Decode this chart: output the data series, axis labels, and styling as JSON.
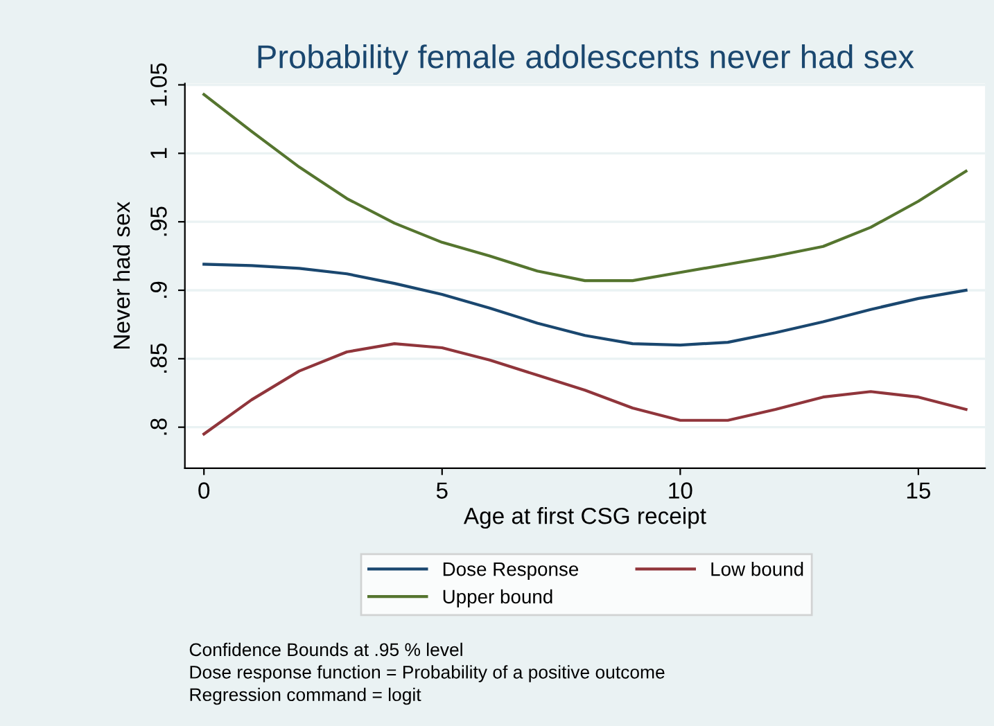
{
  "chart_data": {
    "type": "line",
    "title": "Probability female adolescents never had sex",
    "xlabel": "Age at first CSG receipt",
    "ylabel": "Never had sex",
    "x": [
      0,
      1,
      2,
      3,
      4,
      5,
      6,
      7,
      8,
      9,
      10,
      11,
      12,
      13,
      14,
      15,
      16
    ],
    "series": [
      {
        "name": "Dose Response",
        "color": "#1a476f",
        "values": [
          0.919,
          0.918,
          0.916,
          0.912,
          0.905,
          0.897,
          0.887,
          0.876,
          0.867,
          0.861,
          0.86,
          0.862,
          0.869,
          0.877,
          0.886,
          0.894,
          0.9
        ]
      },
      {
        "name": "Low bound",
        "color": "#90353b",
        "values": [
          0.795,
          0.82,
          0.841,
          0.855,
          0.861,
          0.858,
          0.849,
          0.838,
          0.827,
          0.814,
          0.805,
          0.805,
          0.813,
          0.822,
          0.826,
          0.822,
          0.813
        ]
      },
      {
        "name": "Upper bound",
        "color": "#55752f",
        "values": [
          1.043,
          1.016,
          0.99,
          0.967,
          0.949,
          0.935,
          0.925,
          0.914,
          0.907,
          0.907,
          0.913,
          0.919,
          0.925,
          0.932,
          0.946,
          0.965,
          0.987
        ]
      }
    ],
    "xlim": [
      -0.4,
      16.4
    ],
    "xticks": [
      0,
      5,
      10,
      15
    ],
    "ylim": [
      0.77,
      1.051
    ],
    "yticks": [
      {
        "value": 0.8,
        "label": ".8"
      },
      {
        "value": 0.85,
        "label": ".85"
      },
      {
        "value": 0.9,
        "label": ".9"
      },
      {
        "value": 0.95,
        "label": ".95"
      },
      1,
      1.05
    ],
    "grid": "y",
    "legend": "bottom",
    "marker": "none",
    "line_style": "solid",
    "annotations": [
      "Confidence Bounds at .95 % level",
      "Dose response function = Probability of a positive outcome",
      "Regression command = logit"
    ]
  }
}
